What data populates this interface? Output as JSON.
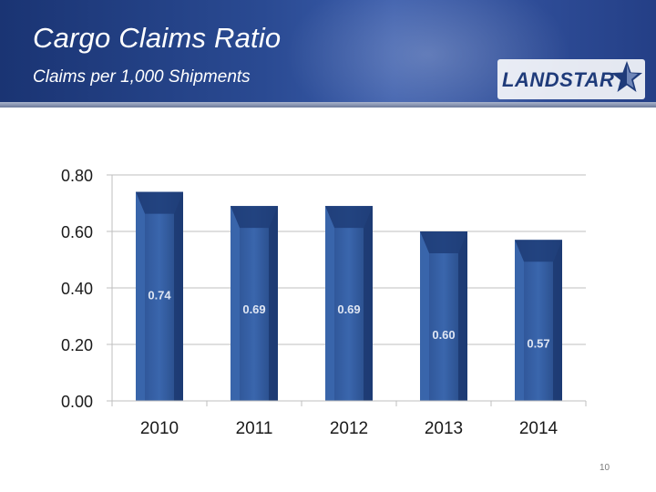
{
  "slide": {
    "title": "Cargo Claims Ratio",
    "subtitle": "Claims per 1,000 Shipments",
    "logo_text": "LANDSTAR",
    "page_number": "10"
  },
  "colors": {
    "header_blue": "#243f86",
    "bar_blue": "#2f5596",
    "bar_dark": "#1f3d78"
  },
  "chart_data": {
    "type": "bar",
    "title": "",
    "xlabel": "",
    "ylabel": "",
    "categories": [
      "2010",
      "2011",
      "2012",
      "2013",
      "2014"
    ],
    "values": [
      0.74,
      0.69,
      0.69,
      0.6,
      0.57
    ],
    "data_labels": [
      "0.74",
      "0.69",
      "0.69",
      "0.60",
      "0.57"
    ],
    "ylim": [
      0,
      0.8
    ],
    "yticks": [
      0.0,
      0.2,
      0.4,
      0.6,
      0.8
    ],
    "ytick_labels": [
      "0.00",
      "0.20",
      "0.40",
      "0.60",
      "0.80"
    ],
    "grid": true,
    "legend": "none"
  }
}
